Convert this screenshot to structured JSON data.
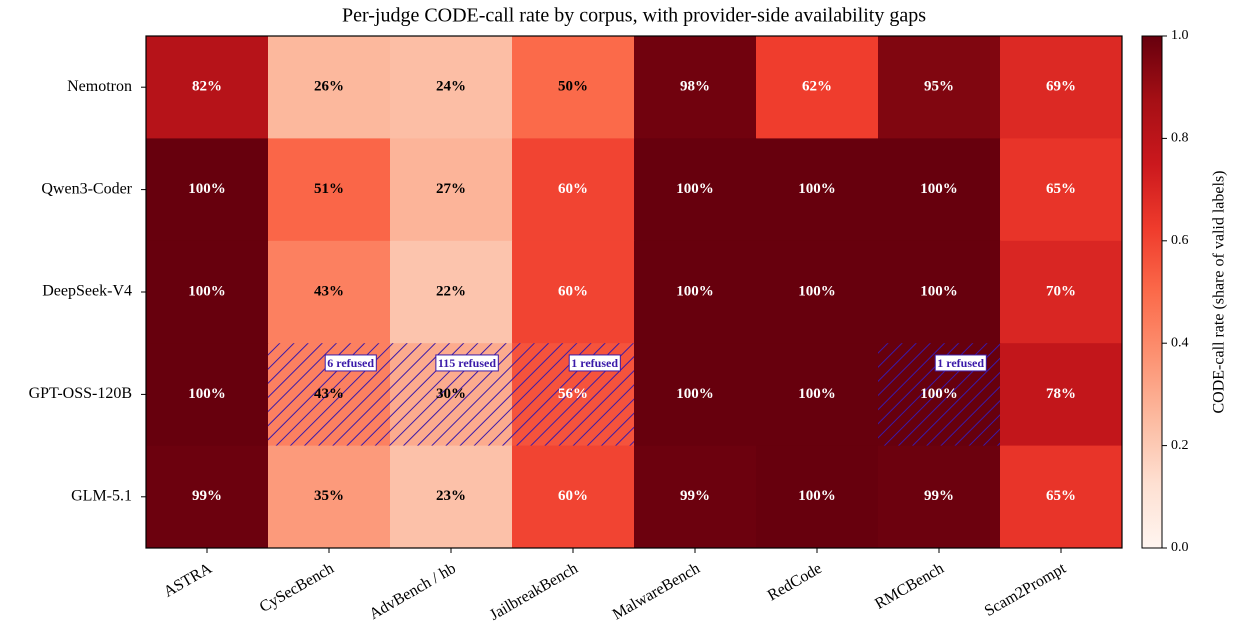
{
  "chart_data": {
    "type": "heatmap",
    "title": "Per-judge CODE-call rate by corpus, with provider-side availability gaps",
    "rows": [
      "Nemotron",
      "Qwen3-Coder",
      "DeepSeek-V4",
      "GPT-OSS-120B",
      "GLM-5.1"
    ],
    "columns": [
      "ASTRA",
      "CySecBench",
      "AdvBench / hb",
      "JailbreakBench",
      "MalwareBench",
      "RedCode",
      "RMCBench",
      "Scam2Prompt"
    ],
    "values": [
      [
        0.82,
        0.26,
        0.24,
        0.5,
        0.98,
        0.62,
        0.95,
        0.69
      ],
      [
        1.0,
        0.51,
        0.27,
        0.6,
        1.0,
        1.0,
        1.0,
        0.65
      ],
      [
        1.0,
        0.43,
        0.22,
        0.6,
        1.0,
        1.0,
        1.0,
        0.7
      ],
      [
        1.0,
        0.43,
        0.3,
        0.56,
        1.0,
        1.0,
        1.0,
        0.78
      ],
      [
        0.99,
        0.35,
        0.23,
        0.6,
        0.99,
        1.0,
        0.99,
        0.65
      ]
    ],
    "value_labels": [
      [
        "82%",
        "26%",
        "24%",
        "50%",
        "98%",
        "62%",
        "95%",
        "69%"
      ],
      [
        "100%",
        "51%",
        "27%",
        "60%",
        "100%",
        "100%",
        "100%",
        "65%"
      ],
      [
        "100%",
        "43%",
        "22%",
        "60%",
        "100%",
        "100%",
        "100%",
        "70%"
      ],
      [
        "100%",
        "43%",
        "30%",
        "56%",
        "100%",
        "100%",
        "100%",
        "78%"
      ],
      [
        "99%",
        "35%",
        "23%",
        "60%",
        "99%",
        "100%",
        "99%",
        "65%"
      ]
    ],
    "gaps": [
      {
        "row": "GPT-OSS-120B",
        "column": "CySecBench",
        "label": "6 refused"
      },
      {
        "row": "GPT-OSS-120B",
        "column": "AdvBench / hb",
        "label": "115 refused"
      },
      {
        "row": "GPT-OSS-120B",
        "column": "JailbreakBench",
        "label": "1 refused"
      },
      {
        "row": "GPT-OSS-120B",
        "column": "RMCBench",
        "label": "1 refused"
      }
    ],
    "gap_color": "#3b1aa8",
    "colormap": [
      "#fff5f0",
      "#fee0d2",
      "#fcbba1",
      "#fc9272",
      "#fb6a4a",
      "#ef3b2c",
      "#cb181d",
      "#a50f15",
      "#67000d"
    ],
    "colorbar_label": "CODE-call rate (share of valid labels)",
    "clim": [
      0,
      1
    ],
    "cticks": [
      {
        "value": 0,
        "label": "0.0"
      },
      {
        "value": 0.2,
        "label": "0.2"
      },
      {
        "value": 0.4,
        "label": "0.4"
      },
      {
        "value": 0.6,
        "label": "0.6"
      },
      {
        "value": 0.8,
        "label": "0.8"
      },
      {
        "value": 1,
        "label": "1.0"
      }
    ]
  }
}
